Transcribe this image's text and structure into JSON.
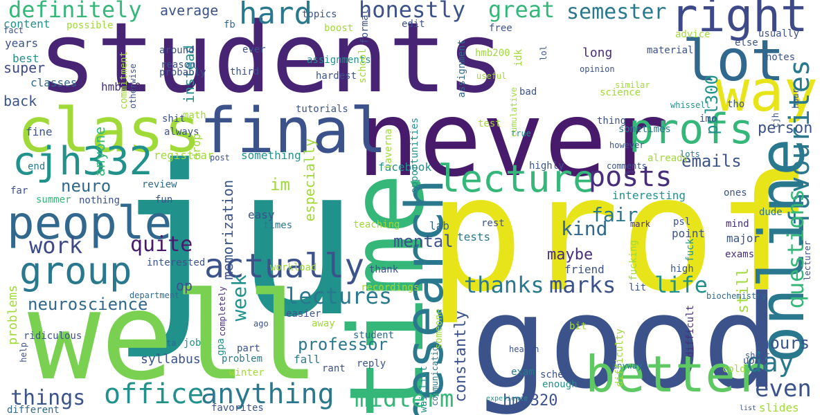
{
  "words": [
    {
      "text": "students",
      "color": "#482475",
      "v": 1
    },
    {
      "text": "ju",
      "color": "#21918c",
      "v": 1
    },
    {
      "text": "prof",
      "color": "#e7e419",
      "v": 1
    },
    {
      "text": "never",
      "color": "#481a6c",
      "v": 1
    },
    {
      "text": "good",
      "color": "#3b528b",
      "v": 1
    },
    {
      "text": "well",
      "color": "#7ad151",
      "v": 1
    },
    {
      "text": "time",
      "color": "#35b779",
      "v": 1
    },
    {
      "text": "final",
      "color": "#3b528b",
      "v": 1
    },
    {
      "text": "lot",
      "color": "#31688e",
      "v": 1
    },
    {
      "text": "right",
      "color": "#3e4989",
      "v": 1
    },
    {
      "text": "way",
      "color": "#e7e419",
      "v": 1
    },
    {
      "text": "class",
      "color": "#a0da39",
      "v": 1
    },
    {
      "text": "research",
      "color": "#2a788e",
      "v": 1
    },
    {
      "text": "online",
      "color": "#2a788e",
      "v": 1
    },
    {
      "text": "better",
      "color": "#5ec962",
      "v": 1
    },
    {
      "text": "people",
      "color": "#31688e",
      "v": 1
    },
    {
      "text": "group",
      "color": "#2a788e",
      "v": 1
    },
    {
      "text": "cjh332",
      "color": "#21918c",
      "v": 1
    },
    {
      "text": "profs",
      "color": "#35b779",
      "v": 1
    },
    {
      "text": "lecture",
      "color": "#35b779",
      "v": 1
    },
    {
      "text": "actually",
      "color": "#3b528b",
      "v": 1
    },
    {
      "text": "favourites",
      "color": "#2a788e",
      "v": 1
    },
    {
      "text": "office",
      "color": "#21918c",
      "v": 1
    },
    {
      "text": "anything",
      "color": "#2a788e",
      "v": 1
    },
    {
      "text": "posts",
      "color": "#472d7b",
      "v": 1
    },
    {
      "text": "hard",
      "color": "#2a788e",
      "v": 1
    },
    {
      "text": "honestly",
      "color": "#3b528b",
      "v": 1
    },
    {
      "text": "definitely",
      "color": "#35b779",
      "v": 1
    },
    {
      "text": "great",
      "color": "#35b779",
      "v": 1
    },
    {
      "text": "semester",
      "color": "#2a788e",
      "v": 1
    },
    {
      "text": "questions",
      "color": "#35b779",
      "v": 1
    },
    {
      "text": "day",
      "color": "#2a788e",
      "v": 1
    },
    {
      "text": "even",
      "color": "#3b528b",
      "v": 1
    },
    {
      "text": "midterm",
      "color": "#35b779",
      "v": 1
    },
    {
      "text": "lectures",
      "color": "#2a788e",
      "v": 1
    },
    {
      "text": "neuroscience",
      "color": "#31688e",
      "v": 1
    },
    {
      "text": "work",
      "color": "#3e4989",
      "v": 1
    },
    {
      "text": "quite",
      "color": "#481a6c",
      "v": 1
    },
    {
      "text": "neuro",
      "color": "#31688e",
      "v": 1
    },
    {
      "text": "life",
      "color": "#21918c",
      "v": 1
    },
    {
      "text": "marks",
      "color": "#3b528b",
      "v": 1
    },
    {
      "text": "thanks",
      "color": "#2a788e",
      "v": 1
    },
    {
      "text": "things",
      "color": "#3b528b",
      "v": 1
    },
    {
      "text": "week",
      "color": "#21918c",
      "v": 1
    },
    {
      "text": "im",
      "color": "#a0da39",
      "v": 1
    },
    {
      "text": "mental",
      "color": "#3b528b",
      "v": 1
    },
    {
      "text": "psl300",
      "color": "#21918c",
      "v": 1
    },
    {
      "text": "emails",
      "color": "#3b528b",
      "v": 1
    },
    {
      "text": "person",
      "color": "#3b528b",
      "v": 1
    },
    {
      "text": "professor",
      "color": "#2a788e",
      "v": 1
    },
    {
      "text": "hours",
      "color": "#3b528b",
      "v": 1
    },
    {
      "text": "fair",
      "color": "#2a788e",
      "v": 1
    },
    {
      "text": "kind",
      "color": "#31688e",
      "v": 1
    },
    {
      "text": "maybe",
      "color": "#472d7b",
      "v": 1
    },
    {
      "text": "hmb320",
      "color": "#3b528b",
      "v": 1
    },
    {
      "text": "constantly",
      "color": "#3b528b",
      "v": 1
    },
    {
      "text": "still",
      "color": "#a0da39",
      "v": 1
    },
    {
      "text": "instead",
      "color": "#21918c",
      "v": 1
    },
    {
      "text": "especially",
      "color": "#a0da39",
      "v": 1
    },
    {
      "text": "memorization",
      "color": "#3b528b",
      "v": 1
    },
    {
      "text": "average",
      "color": "#3b528b",
      "v": 1
    },
    {
      "text": "anyone",
      "color": "#35b779",
      "v": 1
    },
    {
      "text": "super",
      "color": "#3e4989",
      "v": 1
    },
    {
      "text": "back",
      "color": "#3b528b",
      "v": 1
    },
    {
      "text": "op",
      "color": "#3b528b",
      "v": 1
    },
    {
      "text": "problems",
      "color": "#a0da39",
      "v": 1
    },
    {
      "text": "syllabus",
      "color": "#3b528b",
      "v": 1
    },
    {
      "text": "long",
      "color": "#472d7b",
      "v": 1
    },
    {
      "text": "facebook",
      "color": "#21918c",
      "v": 1
    },
    {
      "text": "fb",
      "color": "#31688e",
      "v": 1
    },
    {
      "text": "something",
      "color": "#21918c",
      "v": 1
    },
    {
      "text": "registrar",
      "color": "#a0da39",
      "v": 1
    },
    {
      "text": "hmb310",
      "color": "#472d7b",
      "v": 1
    },
    {
      "text": "classes",
      "color": "#31688e",
      "v": 1
    },
    {
      "text": "content",
      "color": "#21918c",
      "v": 1
    },
    {
      "text": "years",
      "color": "#3b528b",
      "v": 1
    },
    {
      "text": "best",
      "color": "#21918c",
      "v": 1
    },
    {
      "text": "fine",
      "color": "#3b528b",
      "v": 1
    },
    {
      "text": "end",
      "color": "#2a788e",
      "v": 1
    },
    {
      "text": "far",
      "color": "#3b528b",
      "v": 1
    },
    {
      "text": "summer",
      "color": "#35b779",
      "v": 1
    },
    {
      "text": "nothing",
      "color": "#3b528b",
      "v": 1
    },
    {
      "text": "review",
      "color": "#31688e",
      "v": 1
    },
    {
      "text": "fun",
      "color": "#3b528b",
      "v": 1
    },
    {
      "text": "easy",
      "color": "#3b528b",
      "v": 1
    },
    {
      "text": "times",
      "color": "#2a788e",
      "v": 1
    },
    {
      "text": "lab",
      "color": "#31688e",
      "v": 1
    },
    {
      "text": "interesting",
      "color": "#21918c",
      "v": 1
    },
    {
      "text": "mark",
      "color": "#472d7b",
      "v": 1
    },
    {
      "text": "point",
      "color": "#3b528b",
      "v": 1
    },
    {
      "text": "major",
      "color": "#3b528b",
      "v": 1
    },
    {
      "text": "exams",
      "color": "#472d7b",
      "v": 1
    },
    {
      "text": "tests",
      "color": "#2a788e",
      "v": 1
    },
    {
      "text": "friend",
      "color": "#3b528b",
      "v": 1
    },
    {
      "text": "ridiculous",
      "color": "#3b528b",
      "v": 1
    },
    {
      "text": "department",
      "color": "#31688e",
      "v": 1
    },
    {
      "text": "problem",
      "color": "#2a788e",
      "v": 1
    },
    {
      "text": "fall",
      "color": "#2a788e",
      "v": 1
    },
    {
      "text": "part",
      "color": "#3b528b",
      "v": 1
    },
    {
      "text": "reply",
      "color": "#3b528b",
      "v": 1
    },
    {
      "text": "rant",
      "color": "#3b528b",
      "v": 1
    },
    {
      "text": "student",
      "color": "#31688e",
      "v": 1
    },
    {
      "text": "completely",
      "color": "#472d7b",
      "v": 1
    },
    {
      "text": "ago",
      "color": "#3b528b",
      "v": 1
    },
    {
      "text": "job",
      "color": "#21918c",
      "v": 1
    },
    {
      "text": "ta",
      "color": "#31688e",
      "v": 1
    },
    {
      "text": "gpa",
      "color": "#21918c",
      "v": 1
    },
    {
      "text": "easier",
      "color": "#3b528b",
      "v": 1
    },
    {
      "text": "away",
      "color": "#a0da39",
      "v": 1
    },
    {
      "text": "help",
      "color": "#3b528b",
      "v": 1
    },
    {
      "text": "different",
      "color": "#31688e",
      "v": 1
    },
    {
      "text": "favorites",
      "color": "#3b528b",
      "v": 1
    },
    {
      "text": "winter",
      "color": "#a0da39",
      "v": 1
    },
    {
      "text": "waitlist",
      "color": "#21918c",
      "v": 1
    },
    {
      "text": "communication",
      "color": "#2a788e",
      "v": 1
    },
    {
      "text": "someone",
      "color": "#a0da39",
      "v": 1
    },
    {
      "text": "exam",
      "color": "#2a788e",
      "v": 1
    },
    {
      "text": "scheme",
      "color": "#3b528b",
      "v": 1
    },
    {
      "text": "enough",
      "color": "#21918c",
      "v": 1
    },
    {
      "text": "health",
      "color": "#3b528b",
      "v": 1
    },
    {
      "text": "bit",
      "color": "#a0da39",
      "v": 1
    },
    {
      "text": "anyway",
      "color": "#2a788e",
      "v": 1
    },
    {
      "text": "difficult",
      "color": "#472d7b",
      "v": 1
    },
    {
      "text": "difficulty",
      "color": "#a0da39",
      "v": 1
    },
    {
      "text": "short",
      "color": "#3b528b",
      "v": 1
    },
    {
      "text": "uoft",
      "color": "#3b528b",
      "v": 1
    },
    {
      "text": "cold",
      "color": "#a0da39",
      "v": 1
    },
    {
      "text": "slides",
      "color": "#a0da39",
      "v": 1
    },
    {
      "text": "lecturer",
      "color": "#3b528b",
      "v": 1
    },
    {
      "text": "experience",
      "color": "#21918c",
      "v": 1
    },
    {
      "text": "list",
      "color": "#3b528b",
      "v": 1
    },
    {
      "text": "biochemistry",
      "color": "#31688e",
      "v": 1
    },
    {
      "text": "lit",
      "color": "#3b528b",
      "v": 1
    },
    {
      "text": "high",
      "color": "#3b528b",
      "v": 1
    },
    {
      "text": "fucking",
      "color": "#a0da39",
      "v": 1
    },
    {
      "text": "fuck",
      "color": "#21918c",
      "v": 1
    },
    {
      "text": "psl",
      "color": "#3b528b",
      "v": 1
    },
    {
      "text": "rest",
      "color": "#3b528b",
      "v": 1
    },
    {
      "text": "mind",
      "color": "#472d7b",
      "v": 1
    },
    {
      "text": "dude",
      "color": "#2a788e",
      "v": 1
    },
    {
      "text": "ones",
      "color": "#3b528b",
      "v": 1
    },
    {
      "text": "already",
      "color": "#a0da39",
      "v": 1
    },
    {
      "text": "lots",
      "color": "#2a788e",
      "v": 1
    },
    {
      "text": "cjh",
      "color": "#3b528b",
      "v": 1
    },
    {
      "text": "comments",
      "color": "#3b528b",
      "v": 1
    },
    {
      "text": "however",
      "color": "#3b528b",
      "v": 1
    },
    {
      "text": "imo",
      "color": "#3b528b",
      "v": 1
    },
    {
      "text": "sometimes",
      "color": "#2a788e",
      "v": 1
    },
    {
      "text": "tho",
      "color": "#3b528b",
      "v": 1
    },
    {
      "text": "whissell",
      "color": "#21918c",
      "v": 1
    },
    {
      "text": "hour",
      "color": "#3b528b",
      "v": 1
    },
    {
      "text": "thing",
      "color": "#3b528b",
      "v": 1
    },
    {
      "text": "highly",
      "color": "#3b528b",
      "v": 1
    },
    {
      "text": "test",
      "color": "#a0da39",
      "v": 1
    },
    {
      "text": "true",
      "color": "#21918c",
      "v": 1
    },
    {
      "text": "cumulative",
      "color": "#a0da39",
      "v": 1
    },
    {
      "text": "lol",
      "color": "#3b528b",
      "v": 1
    },
    {
      "text": "bad",
      "color": "#3b528b",
      "v": 1
    },
    {
      "text": "science",
      "color": "#a0da39",
      "v": 1
    },
    {
      "text": "similar",
      "color": "#a0da39",
      "v": 1
    },
    {
      "text": "opinion",
      "color": "#3b528b",
      "v": 1
    },
    {
      "text": "material",
      "color": "#3b528b",
      "v": 1
    },
    {
      "text": "advice",
      "color": "#a0da39",
      "v": 1
    },
    {
      "text": "usually",
      "color": "#3b528b",
      "v": 1
    },
    {
      "text": "else",
      "color": "#3b528b",
      "v": 1
    },
    {
      "text": "notes",
      "color": "#3b528b",
      "v": 1
    },
    {
      "text": "idk",
      "color": "#a0da39",
      "v": 1
    },
    {
      "text": "hmb200",
      "color": "#a0da39",
      "v": 1
    },
    {
      "text": "useful",
      "color": "#a0da39",
      "v": 1
    },
    {
      "text": "free",
      "color": "#3b528b",
      "v": 1
    },
    {
      "text": "assignment",
      "color": "#31688e",
      "v": 1
    },
    {
      "text": "hardest",
      "color": "#3b528b",
      "v": 1
    },
    {
      "text": "format",
      "color": "#3b528b",
      "v": 1
    },
    {
      "text": "edit",
      "color": "#3b528b",
      "v": 1
    },
    {
      "text": "boost",
      "color": "#a0da39",
      "v": 1
    },
    {
      "text": "topics",
      "color": "#3b528b",
      "v": 1
    },
    {
      "text": "assignments",
      "color": "#21918c",
      "v": 1
    },
    {
      "text": "ever",
      "color": "#3b528b",
      "v": 1
    },
    {
      "text": "school",
      "color": "#a0da39",
      "v": 1
    },
    {
      "text": "third",
      "color": "#3b528b",
      "v": 1
    },
    {
      "text": "around",
      "color": "#3b528b",
      "v": 1
    },
    {
      "text": "reason",
      "color": "#3b528b",
      "v": 1
    },
    {
      "text": "probably",
      "color": "#3b528b",
      "v": 1
    },
    {
      "text": "commitment",
      "color": "#a0da39",
      "v": 1
    },
    {
      "text": "otherwise",
      "color": "#3b528b",
      "v": 1
    },
    {
      "text": "possible",
      "color": "#a0da39",
      "v": 1
    },
    {
      "text": "fact",
      "color": "#3b528b",
      "v": 1
    },
    {
      "text": "shit",
      "color": "#3b528b",
      "v": 1
    },
    {
      "text": "always",
      "color": "#3b528b",
      "v": 1
    },
    {
      "text": "math",
      "color": "#a0da39",
      "v": 1
    },
    {
      "text": "tutorials",
      "color": "#3b528b",
      "v": 1
    },
    {
      "text": "taverna",
      "color": "#a0da39",
      "v": 1
    },
    {
      "text": "opportunities",
      "color": "#21918c",
      "v": 1
    },
    {
      "text": "post",
      "color": "#3b528b",
      "v": 1
    },
    {
      "text": "drop",
      "color": "#a0da39",
      "v": 1
    },
    {
      "text": "interested",
      "color": "#3b528b",
      "v": 1
    },
    {
      "text": "workload",
      "color": "#a0da39",
      "v": 1
    },
    {
      "text": "teaching",
      "color": "#a0da39",
      "v": 1
    },
    {
      "text": "recordings",
      "color": "#a0da39",
      "v": 1
    },
    {
      "text": "thank",
      "color": "#3b528b",
      "v": 1
    }
  ]
}
